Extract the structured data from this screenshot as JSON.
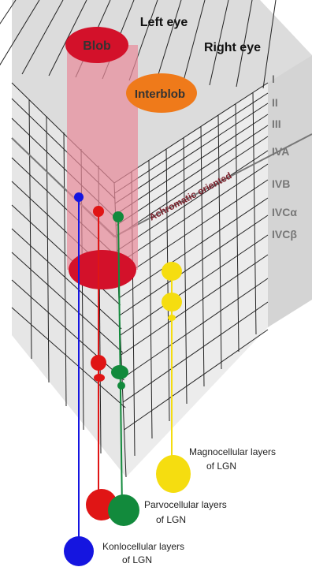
{
  "header": {
    "left_eye": "Left eye",
    "right_eye": "Right eye"
  },
  "columns": {
    "blob": "Blob",
    "interblob": "Interblob"
  },
  "layers": [
    "I",
    "II",
    "III",
    "IVA",
    "IVB",
    "IVCα",
    "IVCβ"
  ],
  "annotation": "Achromatic oriented",
  "pathways": [
    {
      "lines": [
        "Magnocellular layers",
        "of LGN"
      ]
    },
    {
      "lines": [
        "Parvocellular layers",
        "of LGN"
      ]
    },
    {
      "lines": [
        "Konlocellular layers",
        "of LGN"
      ]
    }
  ]
}
